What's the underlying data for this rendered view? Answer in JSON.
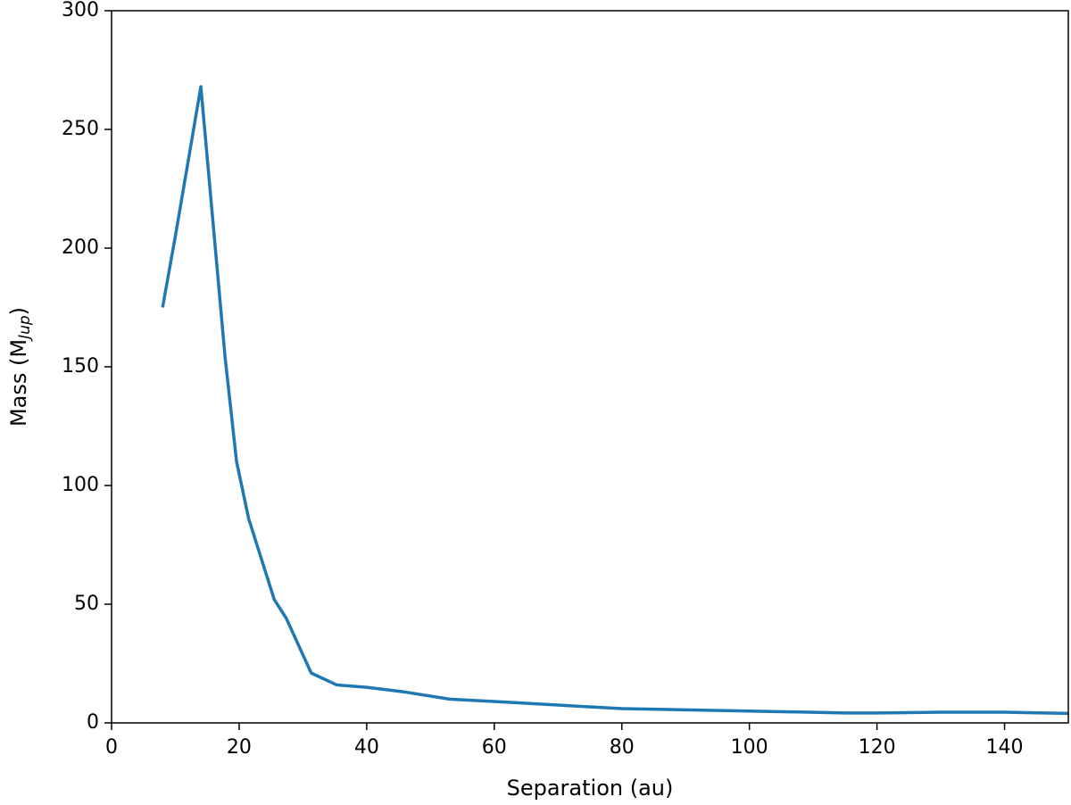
{
  "chart_data": {
    "type": "line",
    "xlabel": "Separation (au)",
    "ylabel": "Mass (M",
    "ylabel_subscript": "Jup",
    "ylabel_suffix": ")",
    "x": [
      8,
      10,
      14,
      17.8,
      19.6,
      21.5,
      25.5,
      27.4,
      31.3,
      35.3,
      40,
      46,
      53,
      60,
      70,
      80,
      90,
      100,
      115,
      120,
      130,
      140,
      150
    ],
    "series": [
      {
        "name": "Mass",
        "color": "#1f77b4",
        "values": [
          175,
          205,
          268,
          154,
          110,
          86,
          52,
          44,
          21,
          16,
          15,
          13,
          10,
          9,
          7.5,
          6,
          5.5,
          5,
          4.2,
          4.2,
          4.5,
          4.5,
          4
        ]
      }
    ],
    "xlim": [
      0,
      150
    ],
    "xticks": [
      0,
      20,
      40,
      60,
      80,
      100,
      120,
      140
    ],
    "ylim": [
      0,
      300
    ],
    "yticks": [
      0,
      50,
      100,
      150,
      200,
      250,
      300
    ],
    "grid": false
  }
}
